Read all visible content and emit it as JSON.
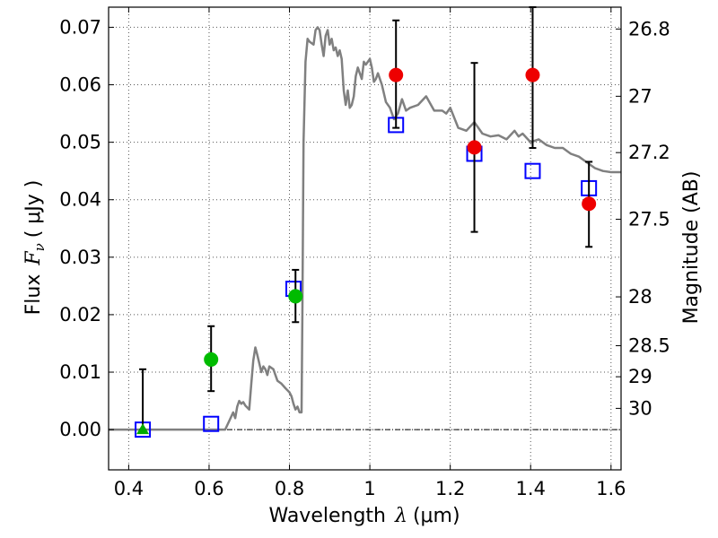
{
  "chart_data": {
    "type": "scatter",
    "title": "",
    "xlabel_prefix": "Wavelength",
    "xlabel_symbol": "λ",
    "xlabel_unit": "(μm)",
    "ylabel_prefix": "Flux",
    "ylabel_symbol": "F",
    "ylabel_subscript": "ν",
    "ylabel_unit": "( μJy )",
    "ylabel_right": "Magnitude (AB)",
    "xlim": [
      0.35,
      1.625
    ],
    "ylim": [
      -0.007,
      0.0735
    ],
    "grid": true,
    "x_ticks": [
      0.4,
      0.6,
      0.8,
      1.0,
      1.2,
      1.4,
      1.6
    ],
    "x_tick_labels": [
      "0.4",
      "0.6",
      "0.8",
      "1",
      "1.2",
      "1.4",
      "1.6"
    ],
    "y_ticks": [
      0.0,
      0.01,
      0.02,
      0.03,
      0.04,
      0.05,
      0.06,
      0.07
    ],
    "y_tick_labels": [
      "0.00",
      "0.01",
      "0.02",
      "0.03",
      "0.04",
      "0.05",
      "0.06",
      "0.07"
    ],
    "magnitude_ticks": [
      {
        "label": "26.8",
        "flux": 0.0697
      },
      {
        "label": "27",
        "flux": 0.058
      },
      {
        "label": "27.2",
        "flux": 0.0482
      },
      {
        "label": "27.5",
        "flux": 0.0366
      },
      {
        "label": "28",
        "flux": 0.0231
      },
      {
        "label": "28.5",
        "flux": 0.0146
      },
      {
        "label": "29",
        "flux": 0.0092
      },
      {
        "label": "30",
        "flux": 0.0037
      }
    ],
    "series": [
      {
        "kind": "line",
        "color": "#808080",
        "x": [
          0.35,
          0.45,
          0.55,
          0.58,
          0.62,
          0.64,
          0.65,
          0.66,
          0.665,
          0.67,
          0.675,
          0.68,
          0.685,
          0.69,
          0.7,
          0.705,
          0.71,
          0.715,
          0.72,
          0.73,
          0.735,
          0.74,
          0.745,
          0.75,
          0.76,
          0.77,
          0.78,
          0.79,
          0.8,
          0.805,
          0.81,
          0.815,
          0.82,
          0.825,
          0.83,
          0.832,
          0.835,
          0.84,
          0.845,
          0.85,
          0.86,
          0.865,
          0.87,
          0.875,
          0.88,
          0.885,
          0.89,
          0.895,
          0.9,
          0.905,
          0.91,
          0.915,
          0.92,
          0.925,
          0.93,
          0.935,
          0.94,
          0.945,
          0.95,
          0.955,
          0.96,
          0.965,
          0.97,
          0.975,
          0.98,
          0.985,
          0.99,
          0.995,
          1.0,
          1.005,
          1.01,
          1.015,
          1.02,
          1.03,
          1.04,
          1.05,
          1.06,
          1.07,
          1.08,
          1.09,
          1.1,
          1.12,
          1.14,
          1.16,
          1.18,
          1.19,
          1.2,
          1.22,
          1.24,
          1.26,
          1.28,
          1.3,
          1.32,
          1.34,
          1.36,
          1.37,
          1.38,
          1.4,
          1.42,
          1.44,
          1.46,
          1.48,
          1.5,
          1.52,
          1.54,
          1.56,
          1.58,
          1.6,
          1.625
        ],
        "y": [
          0.0,
          0.0,
          0.0,
          0.0,
          0.0,
          0.0,
          0.0015,
          0.003,
          0.002,
          0.004,
          0.005,
          0.0045,
          0.0048,
          0.0042,
          0.0035,
          0.008,
          0.012,
          0.0143,
          0.013,
          0.01,
          0.011,
          0.0105,
          0.0095,
          0.011,
          0.0105,
          0.0085,
          0.008,
          0.0072,
          0.0065,
          0.0058,
          0.0045,
          0.0035,
          0.004,
          0.003,
          0.003,
          0.02,
          0.05,
          0.064,
          0.068,
          0.0675,
          0.067,
          0.0695,
          0.07,
          0.0695,
          0.067,
          0.065,
          0.0685,
          0.0695,
          0.067,
          0.068,
          0.066,
          0.0665,
          0.065,
          0.066,
          0.0645,
          0.059,
          0.0565,
          0.059,
          0.056,
          0.0565,
          0.058,
          0.0615,
          0.063,
          0.062,
          0.061,
          0.064,
          0.0635,
          0.064,
          0.0645,
          0.063,
          0.0605,
          0.061,
          0.062,
          0.06,
          0.057,
          0.056,
          0.054,
          0.055,
          0.0575,
          0.0555,
          0.056,
          0.0565,
          0.058,
          0.0555,
          0.0555,
          0.055,
          0.056,
          0.0525,
          0.052,
          0.0535,
          0.0515,
          0.051,
          0.0512,
          0.0505,
          0.052,
          0.051,
          0.0515,
          0.05,
          0.0505,
          0.0495,
          0.049,
          0.049,
          0.048,
          0.0475,
          0.0465,
          0.0455,
          0.045,
          0.0448,
          0.0448
        ]
      },
      {
        "kind": "open-square",
        "color": "#0000ff",
        "x": [
          0.435,
          0.605,
          0.81,
          1.065,
          1.26,
          1.405,
          1.545
        ],
        "y": [
          0.0,
          0.001,
          0.0245,
          0.053,
          0.048,
          0.045,
          0.042
        ]
      },
      {
        "kind": "circle-errorbar",
        "color": "#00bb00",
        "x": [
          0.605,
          0.815
        ],
        "y": [
          0.0122,
          0.0232
        ],
        "yerr_low": [
          0.0055,
          0.0045
        ],
        "yerr_high": [
          0.0058,
          0.0046
        ]
      },
      {
        "kind": "triangle-errorbar",
        "color": "#00aa00",
        "x": [
          0.435
        ],
        "y": [
          0.0
        ],
        "yerr_low": [
          0.0
        ],
        "yerr_high": [
          0.0105
        ]
      },
      {
        "kind": "circle-errorbar",
        "color": "#ee0000",
        "x": [
          1.065,
          1.26,
          1.405,
          1.545
        ],
        "y": [
          0.0617,
          0.0491,
          0.0617,
          0.0393
        ],
        "yerr_low": [
          0.0092,
          0.0147,
          0.0127,
          0.0075
        ],
        "yerr_high": [
          0.0095,
          0.0147,
          0.0118,
          0.0073
        ]
      }
    ]
  }
}
